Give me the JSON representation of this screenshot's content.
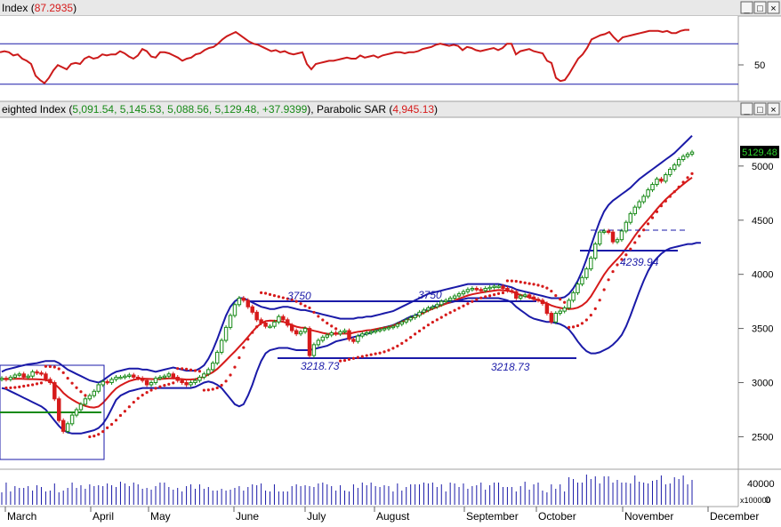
{
  "top_panel": {
    "title_prefix": "Index (",
    "title_value": "87.2935",
    "title_suffix": ")",
    "axis_label": "50",
    "buttons": [
      "_",
      "□",
      "×"
    ]
  },
  "main_panel": {
    "title_prefix": "eighted Index (",
    "title_values": "5,091.54, 5,145.53, 5,088.56, 5,129.48, +37.9399",
    "title_mid": "), Parabolic SAR (",
    "title_sar": "4,945.13",
    "title_suffix": ")",
    "price_badge": "5129.48",
    "buttons": [
      "_",
      "□",
      "×"
    ]
  },
  "volume_panel": {
    "tick_labels": [
      "40000",
      "0"
    ],
    "unit_label": "x100000"
  },
  "annotations": {
    "a3750_left": "3750",
    "a3750_right": "3750",
    "a3218_left": "3218.73",
    "a3218_right": "3218.73",
    "a4239": "4239.94"
  },
  "colors": {
    "bollinger": "#1a1aa8",
    "moving_average": "#d61a1a",
    "sar": "#d61a1a",
    "rsi": "#cc1a1a",
    "candle_up": "#178a17",
    "candle_down": "#d61a1a",
    "trendlines": "#1a1aa8",
    "support": "#178a17",
    "badge_bg": "#000000",
    "badge_text": "#2fd32f"
  },
  "chart_data": [
    {
      "type": "line",
      "panel": "rsi",
      "title": "Index (87.2935)",
      "y_ticks": [
        50
      ],
      "ylim": [
        20,
        100
      ],
      "reference_lines": [
        74,
        36
      ],
      "x": [
        0,
        5,
        10,
        15,
        20,
        25,
        30,
        35,
        40,
        45,
        50,
        55,
        60,
        65,
        70,
        75,
        80,
        85,
        90,
        95,
        100,
        105,
        110,
        115,
        120,
        125,
        130,
        135,
        140,
        145,
        150,
        155,
        160,
        165,
        170,
        175,
        180,
        185,
        190,
        195,
        200,
        205,
        210,
        215,
        220,
        225,
        230,
        235,
        240,
        245,
        250,
        255,
        260,
        265,
        270,
        275,
        280,
        285,
        290,
        295,
        300,
        305,
        310,
        315,
        320,
        325,
        330,
        335,
        340,
        345,
        350,
        355,
        360,
        365,
        370,
        375,
        380,
        385,
        390,
        395,
        400,
        405,
        410,
        415,
        420,
        425,
        430,
        435,
        440,
        445,
        450,
        455,
        460,
        465,
        470,
        475,
        480,
        485,
        490,
        495,
        500,
        505,
        510,
        515,
        520,
        525,
        530,
        535,
        540,
        545,
        550,
        555,
        560,
        565,
        570,
        575,
        580,
        585,
        590,
        595,
        600,
        605,
        610,
        615,
        620,
        625,
        630,
        635,
        640,
        645,
        650,
        655,
        660,
        665,
        670,
        675,
        680,
        685,
        690,
        695,
        700,
        705,
        710,
        715,
        720,
        725,
        730,
        735,
        740,
        745,
        750,
        755,
        760,
        765,
        770,
        775
      ],
      "values": [
        66,
        67,
        66,
        63,
        64,
        60,
        58,
        55,
        44,
        40,
        37,
        42,
        49,
        54,
        52,
        50,
        55,
        56,
        55,
        60,
        62,
        60,
        61,
        64,
        63,
        64,
        64,
        67,
        65,
        62,
        60,
        63,
        69,
        67,
        62,
        61,
        66,
        66,
        65,
        63,
        61,
        58,
        60,
        61,
        64,
        65,
        68,
        70,
        71,
        74,
        78,
        81,
        83,
        85,
        82,
        79,
        76,
        74,
        73,
        71,
        69,
        67,
        68,
        66,
        67,
        65,
        64,
        65,
        66,
        55,
        50,
        55,
        56,
        57,
        58,
        58,
        59,
        60,
        61,
        60,
        60,
        63,
        61,
        62,
        63,
        61,
        63,
        64,
        65,
        66,
        66,
        65,
        66,
        66,
        67,
        69,
        70,
        71,
        73,
        74,
        73,
        72,
        73,
        72,
        68,
        71,
        70,
        68,
        67,
        68,
        69,
        70,
        68,
        70,
        74,
        74,
        64,
        67,
        68,
        69,
        67,
        66,
        65,
        58,
        56,
        42,
        39,
        40,
        46,
        53,
        60,
        64,
        70,
        78,
        80,
        82,
        83,
        85,
        80,
        76,
        80,
        81,
        82,
        83,
        84,
        85,
        86,
        86,
        86,
        85,
        86,
        84,
        84,
        86,
        87,
        87
      ]
    },
    {
      "type": "candlestick",
      "panel": "price",
      "title": "Weighted Index (5,091.54, 5,145.53, 5,088.56, 5,129.48, +37.9399), Parabolic SAR (4,945.13)",
      "x_labels": [
        "March",
        "April",
        "May",
        "June",
        "July",
        "August",
        "September",
        "October",
        "November",
        "December"
      ],
      "y_ticks": [
        2500,
        3000,
        3500,
        4000,
        4500,
        5000
      ],
      "ylim": [
        2200,
        5450
      ],
      "last_value": 5129.48,
      "close": [
        3040,
        3030,
        3050,
        3070,
        3080,
        3050,
        3060,
        3100,
        3090,
        3080,
        3030,
        3000,
        2850,
        2650,
        2550,
        2620,
        2700,
        2750,
        2800,
        2850,
        2880,
        2920,
        2980,
        3010,
        3000,
        3030,
        3050,
        3050,
        3060,
        3070,
        3050,
        3040,
        3020,
        2980,
        3000,
        3040,
        3050,
        3060,
        3080,
        3050,
        3020,
        3000,
        2980,
        3000,
        3020,
        3050,
        3080,
        3120,
        3180,
        3280,
        3390,
        3510,
        3620,
        3720,
        3780,
        3760,
        3700,
        3650,
        3580,
        3550,
        3520,
        3520,
        3560,
        3610,
        3580,
        3530,
        3480,
        3450,
        3470,
        3500,
        3250,
        3350,
        3390,
        3420,
        3440,
        3460,
        3450,
        3470,
        3480,
        3400,
        3380,
        3430,
        3450,
        3460,
        3470,
        3480,
        3490,
        3500,
        3510,
        3520,
        3540,
        3560,
        3580,
        3600,
        3620,
        3650,
        3670,
        3690,
        3700,
        3720,
        3750,
        3760,
        3780,
        3800,
        3820,
        3840,
        3860,
        3870,
        3860,
        3850,
        3870,
        3880,
        3890,
        3890,
        3870,
        3850,
        3840,
        3780,
        3800,
        3810,
        3790,
        3770,
        3760,
        3730,
        3640,
        3560,
        3640,
        3660,
        3690,
        3760,
        3830,
        3910,
        3970,
        4050,
        4150,
        4280,
        4390,
        4400,
        4390,
        4300,
        4320,
        4400,
        4480,
        4560,
        4620,
        4670,
        4720,
        4780,
        4830,
        4880,
        4860,
        4920,
        4970,
        5010,
        5060,
        5090,
        5110,
        5129
      ],
      "bollinger_upper": [
        3100,
        3120,
        3130,
        3140,
        3150,
        3160,
        3170,
        3175,
        3180,
        3190,
        3200,
        3200,
        3200,
        3180,
        3150,
        3120,
        3100,
        3080,
        3060,
        3040,
        3020,
        3010,
        3000,
        3020,
        3050,
        3080,
        3100,
        3110,
        3120,
        3130,
        3130,
        3130,
        3120,
        3120,
        3110,
        3100,
        3110,
        3120,
        3130,
        3140,
        3130,
        3120,
        3110,
        3110,
        3110,
        3130,
        3160,
        3220,
        3300,
        3400,
        3510,
        3620,
        3700,
        3750,
        3780,
        3780,
        3760,
        3740,
        3720,
        3700,
        3690,
        3680,
        3680,
        3690,
        3700,
        3700,
        3690,
        3680,
        3670,
        3670,
        3660,
        3650,
        3640,
        3630,
        3620,
        3610,
        3600,
        3590,
        3590,
        3590,
        3590,
        3600,
        3600,
        3610,
        3610,
        3620,
        3630,
        3640,
        3650,
        3660,
        3680,
        3700,
        3720,
        3740,
        3760,
        3780,
        3800,
        3820,
        3830,
        3840,
        3850,
        3860,
        3870,
        3880,
        3890,
        3900,
        3910,
        3910,
        3910,
        3910,
        3910,
        3910,
        3910,
        3910,
        3900,
        3890,
        3880,
        3860,
        3850,
        3840,
        3830,
        3820,
        3810,
        3800,
        3790,
        3780,
        3780,
        3780,
        3790,
        3820,
        3870,
        3940,
        4030,
        4140,
        4260,
        4380,
        4490,
        4580,
        4640,
        4680,
        4710,
        4740,
        4770,
        4800,
        4840,
        4880,
        4910,
        4940,
        4970,
        5000,
        5030,
        5060,
        5090,
        5120,
        5160,
        5200,
        5240,
        5280
      ],
      "bollinger_lower": [
        2950,
        2940,
        2920,
        2900,
        2880,
        2860,
        2840,
        2820,
        2800,
        2780,
        2750,
        2700,
        2650,
        2600,
        2560,
        2540,
        2530,
        2530,
        2530,
        2540,
        2550,
        2560,
        2580,
        2620,
        2680,
        2760,
        2840,
        2880,
        2900,
        2920,
        2930,
        2940,
        2950,
        2950,
        2950,
        2950,
        2950,
        2950,
        2950,
        2950,
        2950,
        2950,
        2950,
        2950,
        2960,
        2980,
        3000,
        3010,
        3000,
        2980,
        2950,
        2900,
        2850,
        2800,
        2780,
        2800,
        2880,
        2980,
        3100,
        3200,
        3270,
        3300,
        3310,
        3320,
        3320,
        3320,
        3310,
        3300,
        3300,
        3300,
        3300,
        3310,
        3320,
        3330,
        3340,
        3360,
        3380,
        3390,
        3400,
        3410,
        3420,
        3430,
        3440,
        3450,
        3460,
        3480,
        3500,
        3510,
        3520,
        3530,
        3550,
        3570,
        3590,
        3610,
        3620,
        3640,
        3660,
        3680,
        3700,
        3710,
        3720,
        3730,
        3740,
        3750,
        3760,
        3770,
        3780,
        3780,
        3780,
        3780,
        3780,
        3780,
        3780,
        3780,
        3770,
        3760,
        3740,
        3700,
        3670,
        3640,
        3610,
        3590,
        3580,
        3570,
        3560,
        3560,
        3550,
        3540,
        3520,
        3490,
        3440,
        3380,
        3330,
        3290,
        3270,
        3270,
        3280,
        3300,
        3320,
        3350,
        3390,
        3440,
        3520,
        3620,
        3730,
        3840,
        3940,
        4030,
        4100,
        4150,
        4190,
        4220,
        4240,
        4250,
        4260,
        4270,
        4280,
        4280,
        4290,
        4290
      ]
    },
    {
      "type": "bar",
      "panel": "volume",
      "y_ticks": [
        40000,
        0
      ],
      "ylim": [
        0,
        60000
      ],
      "unit": "x100000"
    }
  ]
}
